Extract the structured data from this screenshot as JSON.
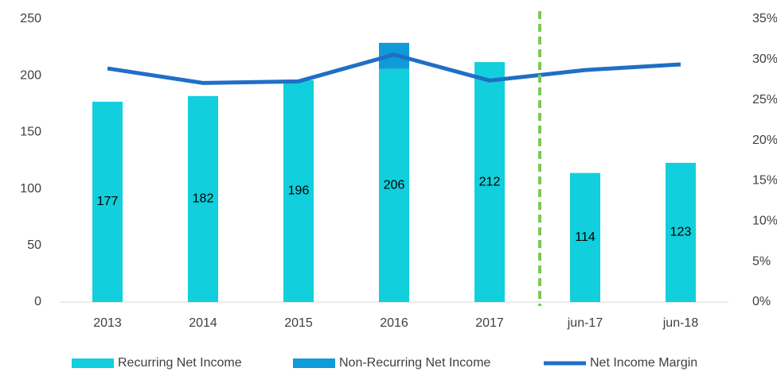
{
  "chart_data": {
    "type": "bar",
    "categories": [
      "2013",
      "2014",
      "2015",
      "2016",
      "2017",
      "jun-17",
      "jun-18"
    ],
    "series": [
      {
        "name": "Recurring Net Income",
        "color": "#11cfdc",
        "values": [
          177,
          182,
          196,
          206,
          212,
          114,
          123
        ]
      },
      {
        "name": "Non-Recurring Net Income",
        "color": "#0f9ad8",
        "values": [
          null,
          null,
          null,
          23,
          null,
          null,
          null
        ]
      },
      {
        "name": "Net Income Margin",
        "color": "#1f6fc5",
        "type": "line",
        "axis": "y2",
        "values": [
          28.9,
          27.1,
          27.3,
          30.6,
          27.4,
          28.7,
          29.4
        ]
      }
    ],
    "ylim": [
      0,
      250
    ],
    "yticks": [
      0,
      50,
      100,
      150,
      200,
      250
    ],
    "y2lim": [
      0,
      35
    ],
    "y2ticks": [
      {
        "value": 0,
        "label": "0%"
      },
      {
        "value": 5,
        "label": "5%"
      },
      {
        "value": 10,
        "label": "10%"
      },
      {
        "value": 15,
        "label": "15%"
      },
      {
        "value": 20,
        "label": "20%"
      },
      {
        "value": 25,
        "label": "25%"
      },
      {
        "value": 30,
        "label": "30%"
      },
      {
        "value": 35,
        "label": "35%"
      }
    ],
    "stacked": true,
    "grid": false,
    "legend": "bottom"
  }
}
